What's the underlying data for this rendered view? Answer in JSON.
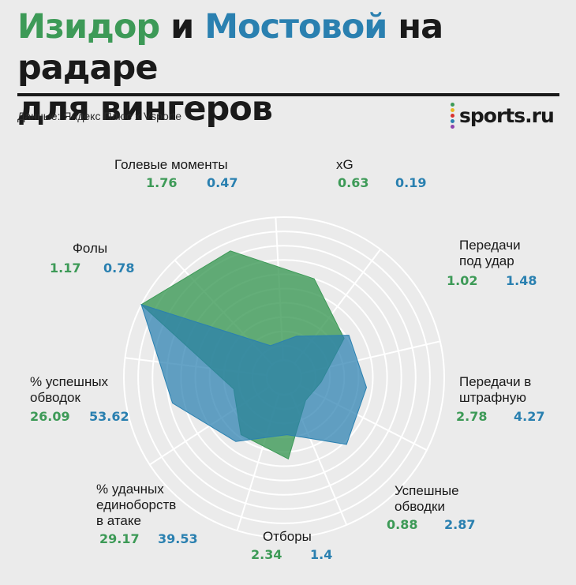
{
  "header": {
    "title_part1": "Изидор",
    "title_part2": " и ",
    "title_part3": "Мостовой",
    "title_part4": " на радаре",
    "title_line2": "для вингеров",
    "source": "Данные: Яндекс Плюс x Vsporte",
    "logo_text": "sports.ru"
  },
  "colors": {
    "izidor": "#3d9a57",
    "mostovoy": "#2a80b0",
    "logo_dots": [
      "#3d9a57",
      "#e8b823",
      "#d8322f",
      "#2a80b0",
      "#8e44ad"
    ]
  },
  "chart_data": {
    "type": "radar",
    "title": "Изидор и Мостовой на радаре для вингеров",
    "series_names": [
      "Изидор",
      "Мостовой"
    ],
    "axes": [
      {
        "label": "Голевые моменты",
        "label_lines": [
          "Голевые моменты"
        ],
        "izidor": "1.76",
        "mostovoy": "0.47"
      },
      {
        "label": "xG",
        "label_lines": [
          "xG"
        ],
        "izidor": "0.63",
        "mostovoy": "0.19"
      },
      {
        "label": "Передачи под удар",
        "label_lines": [
          "Передачи",
          "под удар"
        ],
        "izidor": "1.02",
        "mostovoy": "1.48"
      },
      {
        "label": "Передачи в штрафную",
        "label_lines": [
          "Передачи в",
          "штрафную"
        ],
        "izidor": "2.78",
        "mostovoy": "4.27"
      },
      {
        "label": "Успешные обводки",
        "label_lines": [
          "Успешные",
          "обводки"
        ],
        "izidor": "0.88",
        "mostovoy": "2.87"
      },
      {
        "label": "Отборы",
        "label_lines": [
          "Отборы"
        ],
        "izidor": "2.34",
        "mostovoy": "1.4"
      },
      {
        "label": "% удачных единоборств в атаке",
        "label_lines": [
          "%  удачных",
          "единоборств",
          "в атаке"
        ],
        "izidor": "29.17",
        "mostovoy": "39.53"
      },
      {
        "label": "% успешных обводок",
        "label_lines": [
          "% успешных",
          "обводок"
        ],
        "izidor": "26.09",
        "mostovoy": "53.62"
      },
      {
        "label": "Фолы",
        "label_lines": [
          "Фолы"
        ],
        "izidor": "1.17",
        "mostovoy": "0.78"
      }
    ],
    "series": [
      {
        "name": "Изидор",
        "percentile": [
          0.84,
          0.6,
          0.38,
          0.14,
          0.1,
          0.45,
          0.38,
          0.24,
          1.0
        ]
      },
      {
        "name": "Мостовой",
        "percentile": [
          0.12,
          0.18,
          0.42,
          0.46,
          0.52,
          0.28,
          0.44,
          0.68,
          1.0
        ]
      }
    ]
  }
}
